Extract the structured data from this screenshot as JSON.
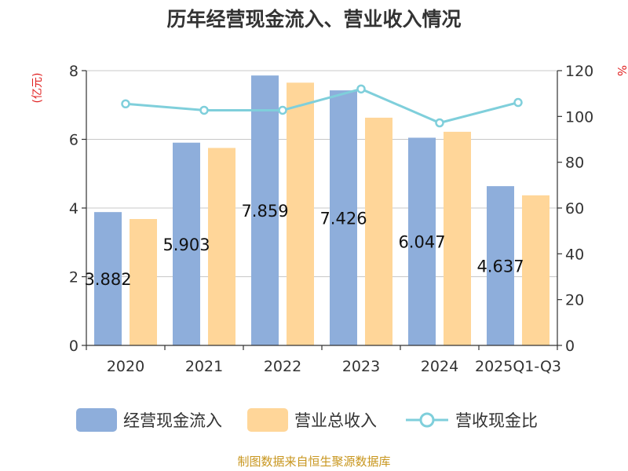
{
  "chart_data": {
    "type": "bar+line",
    "title": "历年经营现金流入、营业收入情况",
    "categories": [
      "2020",
      "2021",
      "2022",
      "2023",
      "2024",
      "2025Q1-Q3"
    ],
    "series": [
      {
        "name": "经营现金流入",
        "type": "bar",
        "axis": "left",
        "color": "#8eaedb",
        "values": [
          3.882,
          5.903,
          7.859,
          7.426,
          6.047,
          4.637
        ],
        "labels": [
          "3.882",
          "5.903",
          "7.859",
          "7.426",
          "6.047",
          "4.637"
        ]
      },
      {
        "name": "营业总收入",
        "type": "bar",
        "axis": "left",
        "color": "#ffd699",
        "values": [
          3.68,
          5.75,
          7.65,
          6.63,
          6.22,
          4.37
        ]
      },
      {
        "name": "营收现金比",
        "type": "line",
        "axis": "right",
        "color": "#7fcfdb",
        "values": [
          105.5,
          102.7,
          102.7,
          112.0,
          97.2,
          106.1
        ]
      }
    ],
    "y_left": {
      "unit": "(亿元)",
      "min": 0,
      "max": 8,
      "ticks": [
        "0",
        "2",
        "4",
        "6",
        "8"
      ]
    },
    "y_right": {
      "unit": "%",
      "min": 0,
      "max": 120,
      "ticks": [
        "0",
        "20",
        "40",
        "60",
        "80",
        "100",
        "120"
      ]
    },
    "grid": true,
    "legend_position": "bottom",
    "source": "制图数据来自恒生聚源数据库"
  }
}
